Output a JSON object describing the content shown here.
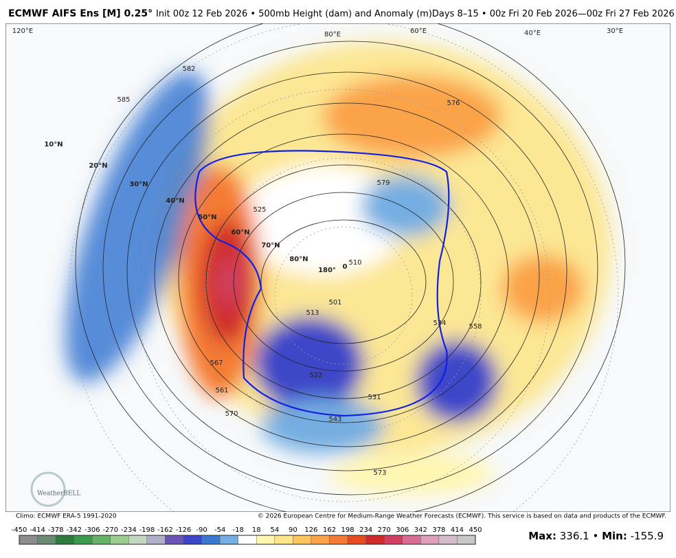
{
  "header": {
    "title_bold": "ECMWF AIFS Ens [M] 0.25°",
    "title_rest": "Init 00z 12 Feb 2026 • 500mb Height (dam) and Anomaly (m)Days 8–15 • 00z Fri 20 Feb 2026—00z Fri 27 Feb 2026"
  },
  "map": {
    "labels": [
      "10°N",
      "20°N",
      "30°N",
      "40°N",
      "50°N",
      "60°N",
      "70°N",
      "80°N",
      "180°",
      "0",
      "585",
      "582",
      "576",
      "525",
      "510",
      "513",
      "501",
      "522",
      "531",
      "543",
      "567",
      "570",
      "561",
      "579",
      "558",
      "534",
      "573",
      "120°E",
      "80°E",
      "60°E",
      "40°E",
      "30°E"
    ],
    "logo": "WeatherBELL"
  },
  "footer": {
    "climo": "Climo: ECMWF ERA-5 1991-2020",
    "copyright": "© 2026 European Centre for Medium-Range Weather Forecasts (ECMWF). This service is based on data and products of the ECMWF."
  },
  "colorbar": {
    "ticks": [
      -450,
      -414,
      -378,
      -342,
      -306,
      -270,
      -234,
      -198,
      -162,
      -126,
      -90,
      -54,
      -18,
      18,
      54,
      90,
      126,
      162,
      198,
      234,
      270,
      306,
      342,
      378,
      414,
      450
    ],
    "colors": [
      "#8c8c8c",
      "#6a8a74",
      "#2f7a3f",
      "#3c9a4c",
      "#65b366",
      "#9ccf8f",
      "#c4d8c0",
      "#b0b0c8",
      "#6a55b5",
      "#3c46c8",
      "#3b78d1",
      "#74aee2",
      "#ffffff",
      "#fff6b0",
      "#fde58a",
      "#fdc55e",
      "#fba34a",
      "#f57a33",
      "#e84b22",
      "#cf2a2a",
      "#d0405f",
      "#d86d93",
      "#dca0bd",
      "#d3bccb",
      "#c8c8c8"
    ]
  },
  "stats": {
    "max_label": "Max:",
    "max": 336.1,
    "separator": "•",
    "min_label": "Min:",
    "min": -155.9
  }
}
